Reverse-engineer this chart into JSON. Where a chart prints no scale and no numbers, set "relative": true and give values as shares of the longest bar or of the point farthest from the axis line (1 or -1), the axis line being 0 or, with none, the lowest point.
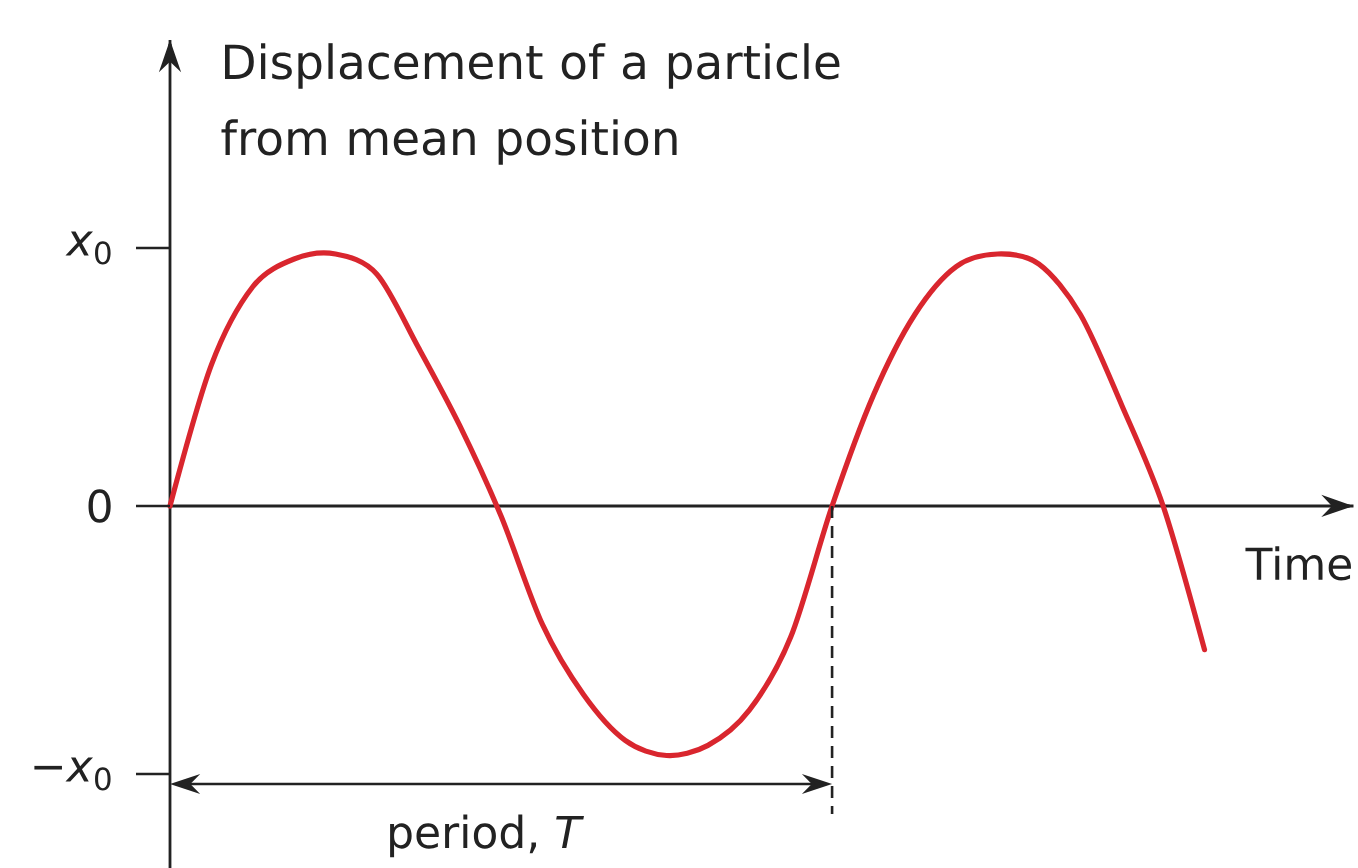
{
  "chart_data": {
    "type": "line",
    "relative": true,
    "ylabel": "Displacement of a particle from mean position",
    "xlabel": "Time",
    "categories": [
      null,
      null,
      null,
      null,
      null,
      null,
      null,
      null,
      null,
      null,
      null,
      null,
      null,
      null,
      null,
      null,
      null,
      null,
      null,
      null,
      null,
      null,
      null,
      null,
      null,
      null
    ],
    "series": [
      {
        "color": "#d9262e",
        "values": [
          0,
          0.56,
          0.87,
          0.98,
          1,
          0.92,
          0.63,
          0.32,
          -0.04,
          -0.47,
          -0.75,
          -0.93,
          -0.99,
          -0.95,
          -0.81,
          -0.52,
          0,
          0.44,
          0.76,
          0.95,
          1,
          0.96,
          0.76,
          0.4,
          0,
          -0.57
        ]
      }
    ],
    "annotations": [
      "*x*$_{0}$",
      "0",
      "−*x*$_{0}$",
      "period, *T*"
    ]
  }
}
